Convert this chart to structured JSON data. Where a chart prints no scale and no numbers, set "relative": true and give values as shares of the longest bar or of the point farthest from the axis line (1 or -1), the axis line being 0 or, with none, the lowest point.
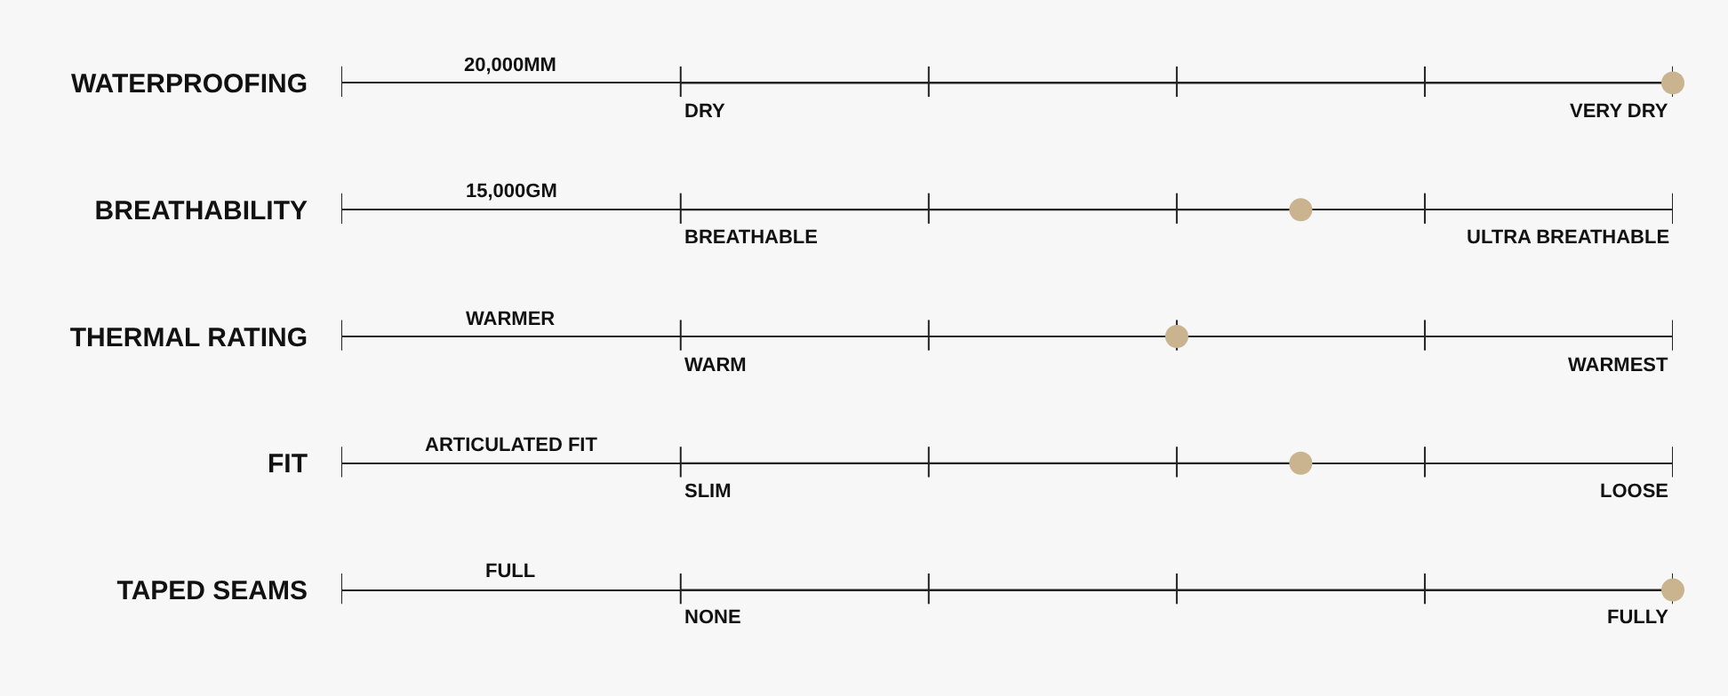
{
  "chart_data": {
    "type": "lollipop",
    "orientation": "horizontal",
    "relative": true,
    "categories": [
      "WATERPROOFING",
      "BREATHABILITY",
      "THERMAL RATING",
      "FIT",
      "TAPED SEAMS"
    ],
    "values": [
      1,
      0.625,
      0.5,
      0.625,
      1
    ],
    "color": "#c9b48f",
    "marker": "circle",
    "grid": "y",
    "legend": false,
    "annotations": [
      "20,000MM",
      "DRY",
      "VERY DRY",
      "15,000GM",
      "BREATHABLE",
      "ULTRA BREATHABLE",
      "WARMER",
      "WARM",
      "WARMEST",
      "ARTICULATED FIT",
      "SLIM",
      "LOOSE",
      "FULL",
      "NONE",
      "FULLY"
    ]
  }
}
